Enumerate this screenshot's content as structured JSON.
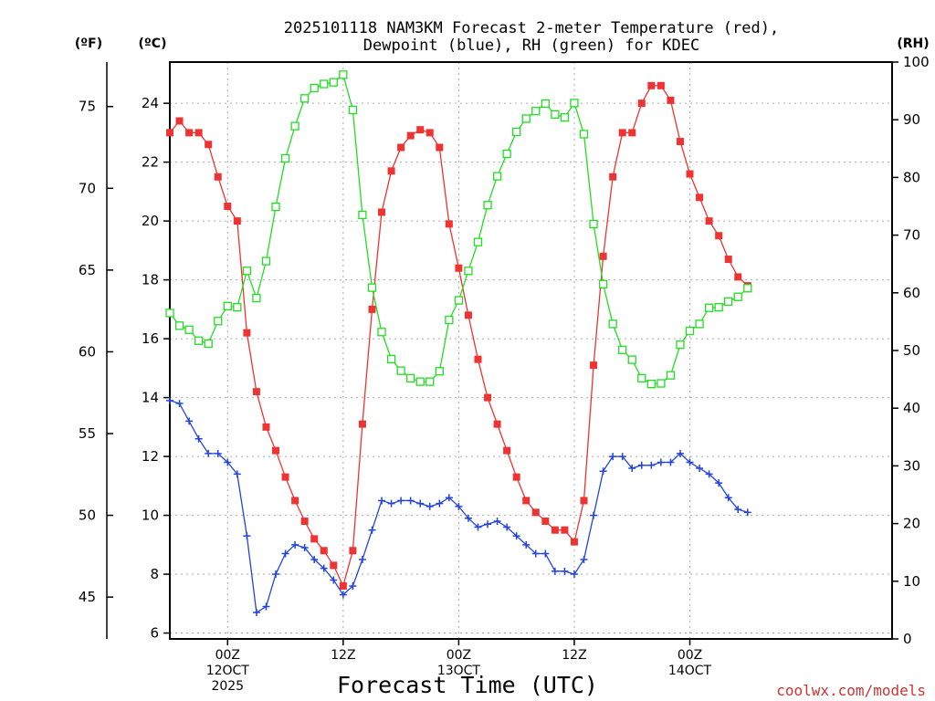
{
  "chart_data": {
    "type": "line",
    "title_line1": "2025101118 NAM3KM Forecast 2-meter Temperature (red),",
    "title_line2": "Dewpoint (blue), RH (green) for KDEC",
    "unit_f": "(ºF)",
    "unit_c": "(ºC)",
    "unit_rh": "(RH)",
    "xlabel": "Forecast Time (UTC)",
    "credit": "coolwx.com/models",
    "colors": {
      "temperature": "#ee3333",
      "dewpoint": "#2244dd",
      "rh": "#22dd22",
      "grid": "#aaaaaa",
      "credit": "#cc3333"
    },
    "x_range_hours": [
      0,
      75
    ],
    "celsius_range": [
      5.8,
      25.4
    ],
    "rh_range": [
      0,
      100
    ],
    "celsius_ticks": [
      6,
      8,
      10,
      12,
      14,
      16,
      18,
      20,
      22,
      24
    ],
    "fahrenheit_ticks": [
      45,
      50,
      55,
      60,
      65,
      70,
      75
    ],
    "rh_ticks": [
      0,
      10,
      20,
      30,
      40,
      50,
      60,
      70,
      80,
      90,
      100
    ],
    "x_ticks": [
      {
        "hour": 6,
        "line1": "00Z",
        "line2": "12OCT",
        "line3": "2025"
      },
      {
        "hour": 18,
        "line1": "12Z",
        "line2": "",
        "line3": ""
      },
      {
        "hour": 30,
        "line1": "00Z",
        "line2": "13OCT",
        "line3": ""
      },
      {
        "hour": 42,
        "line1": "12Z",
        "line2": "",
        "line3": ""
      },
      {
        "hour": 54,
        "line1": "00Z",
        "line2": "14OCT",
        "line3": ""
      }
    ],
    "series": [
      {
        "name": "2-meter Temperature",
        "unit": "°C",
        "marker": "filled-square",
        "x": [
          0,
          1,
          2,
          3,
          4,
          5,
          6,
          7,
          8,
          9,
          10,
          11,
          12,
          13,
          14,
          15,
          16,
          17,
          18,
          19,
          20,
          21,
          22,
          23,
          24,
          25,
          26,
          27,
          28,
          29,
          30,
          31,
          32,
          33,
          34,
          35,
          36,
          37,
          38,
          39,
          40,
          41,
          42,
          43,
          44,
          45,
          46,
          47,
          48,
          49,
          50,
          51,
          52,
          53,
          54,
          55,
          56,
          57,
          58,
          59,
          60
        ],
        "values": [
          23.0,
          23.4,
          23.0,
          23.0,
          22.6,
          21.5,
          20.5,
          20.0,
          16.2,
          14.2,
          13.0,
          12.2,
          11.3,
          10.5,
          9.8,
          9.2,
          8.8,
          8.3,
          7.6,
          8.8,
          13.1,
          17.0,
          20.3,
          21.7,
          22.5,
          22.9,
          23.1,
          23.0,
          22.5,
          19.9,
          18.4,
          16.8,
          15.3,
          14.0,
          13.1,
          12.2,
          11.3,
          10.5,
          10.1,
          9.8,
          9.5,
          9.5,
          9.1,
          10.5,
          15.1,
          18.8,
          21.5,
          23.0,
          23.0,
          24.0,
          24.6,
          24.6,
          24.1,
          22.7,
          21.6,
          20.8,
          20.0,
          19.5,
          18.7,
          18.1,
          17.8
        ]
      },
      {
        "name": "Dewpoint",
        "unit": "°C",
        "marker": "plus",
        "x": [
          0,
          1,
          2,
          3,
          4,
          5,
          6,
          7,
          8,
          9,
          10,
          11,
          12,
          13,
          14,
          15,
          16,
          17,
          18,
          19,
          20,
          21,
          22,
          23,
          24,
          25,
          26,
          27,
          28,
          29,
          30,
          31,
          32,
          33,
          34,
          35,
          36,
          37,
          38,
          39,
          40,
          41,
          42,
          43,
          44,
          45,
          46,
          47,
          48,
          49,
          50,
          51,
          52,
          53,
          54,
          55,
          56,
          57,
          58,
          59,
          60
        ],
        "values": [
          13.9,
          13.8,
          13.2,
          12.6,
          12.1,
          12.1,
          11.8,
          11.4,
          9.3,
          6.7,
          6.9,
          8.0,
          8.7,
          9.0,
          8.9,
          8.5,
          8.2,
          7.8,
          7.3,
          7.6,
          8.5,
          9.5,
          10.5,
          10.4,
          10.5,
          10.5,
          10.4,
          10.3,
          10.4,
          10.6,
          10.3,
          9.9,
          9.6,
          9.7,
          9.8,
          9.6,
          9.3,
          9.0,
          8.7,
          8.7,
          8.1,
          8.1,
          8.0,
          8.5,
          10.0,
          11.5,
          12.0,
          12.0,
          11.6,
          11.7,
          11.7,
          11.8,
          11.8,
          12.1,
          11.8,
          11.6,
          11.4,
          11.1,
          10.6,
          10.2,
          10.1
        ]
      },
      {
        "name": "Relative Humidity",
        "unit": "%",
        "marker": "open-square",
        "x": [
          0,
          1,
          2,
          3,
          4,
          5,
          6,
          7,
          8,
          9,
          10,
          11,
          12,
          13,
          14,
          15,
          16,
          17,
          18,
          19,
          20,
          21,
          22,
          23,
          24,
          25,
          26,
          27,
          28,
          29,
          30,
          31,
          32,
          33,
          34,
          35,
          36,
          37,
          38,
          39,
          40,
          41,
          42,
          43,
          44,
          45,
          46,
          47,
          48,
          49,
          50,
          51,
          52,
          53,
          54,
          55,
          56,
          57,
          58,
          59,
          60
        ],
        "values": [
          56.5,
          54.3,
          53.6,
          51.7,
          51.2,
          55.1,
          57.7,
          57.5,
          63.8,
          59.1,
          65.5,
          74.9,
          83.3,
          88.9,
          93.7,
          95.5,
          96.2,
          96.5,
          97.8,
          91.7,
          73.5,
          60.9,
          53.2,
          48.5,
          46.5,
          45.2,
          44.6,
          44.6,
          46.4,
          55.3,
          58.7,
          63.8,
          68.8,
          75.2,
          80.2,
          84.1,
          87.9,
          90.2,
          91.5,
          92.8,
          90.9,
          90.4,
          92.9,
          87.5,
          71.9,
          61.5,
          54.6,
          50.1,
          48.4,
          45.2,
          44.2,
          44.3,
          45.7,
          51.0,
          53.4,
          54.6,
          57.4,
          57.5,
          58.5,
          59.3,
          60.8
        ]
      }
    ]
  }
}
